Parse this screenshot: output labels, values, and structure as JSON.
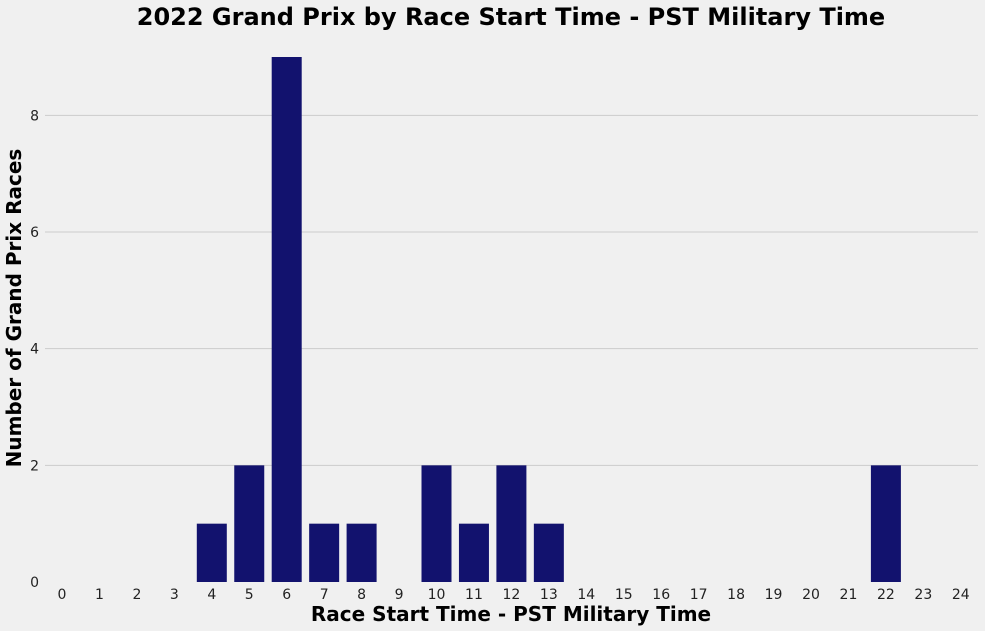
{
  "chart_data": {
    "type": "bar",
    "title": "2022 Grand Prix by Race Start Time - PST Military Time",
    "xlabel": "Race Start Time - PST Military Time",
    "ylabel": "Number of Grand Prix Races",
    "categories": [
      "0",
      "1",
      "2",
      "3",
      "4",
      "5",
      "6",
      "7",
      "8",
      "9",
      "10",
      "11",
      "12",
      "13",
      "14",
      "15",
      "16",
      "17",
      "18",
      "19",
      "20",
      "21",
      "22",
      "23",
      "24"
    ],
    "values": [
      0,
      0,
      0,
      0,
      1,
      2,
      9,
      1,
      1,
      0,
      2,
      1,
      2,
      1,
      0,
      0,
      0,
      0,
      0,
      0,
      0,
      0,
      2,
      0,
      0
    ],
    "ylim": [
      0,
      9
    ],
    "yticks": [
      0,
      2,
      4,
      6,
      8
    ],
    "grid": "horizontal",
    "bar_color": "#12126e",
    "background": "#f0f0f0"
  }
}
